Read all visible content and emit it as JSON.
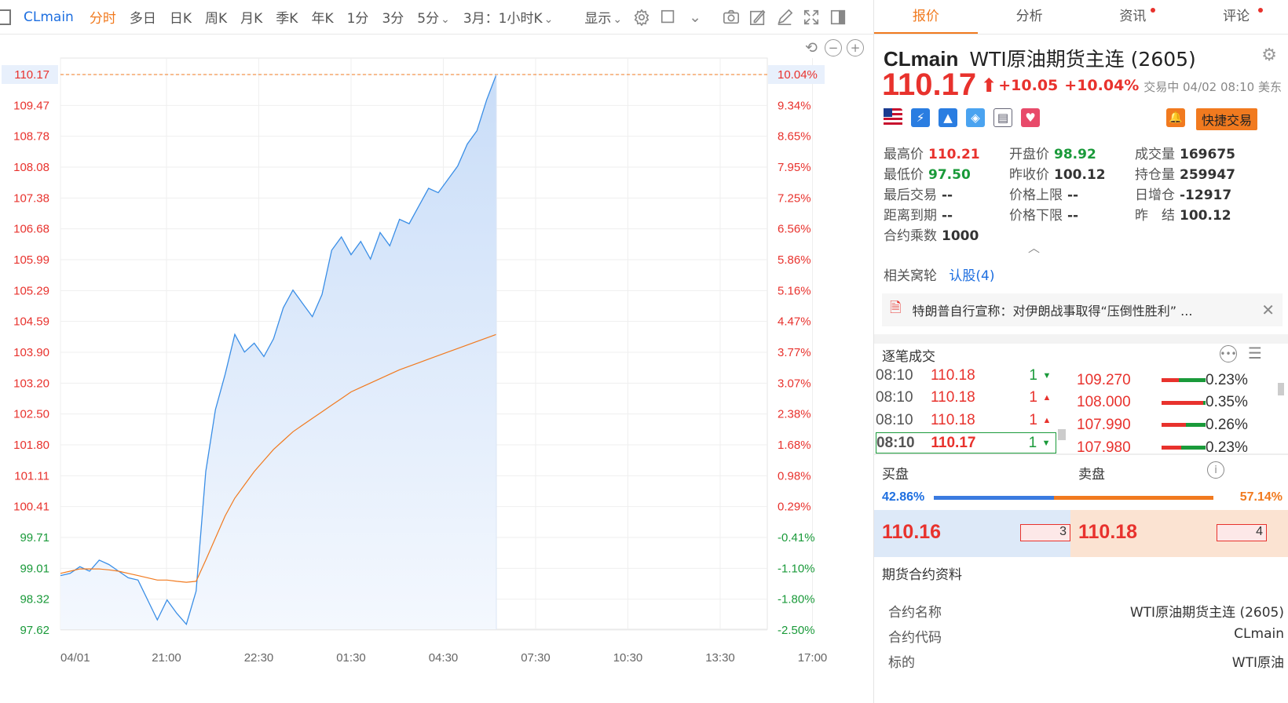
{
  "toolbar": {
    "symbol": "CLmain",
    "items": [
      "分时",
      "多日",
      "日K",
      "周K",
      "月K",
      "季K",
      "年K",
      "1分",
      "3分",
      "5分"
    ],
    "period_select": "3月：1小时K",
    "display_label": "显示",
    "icons": [
      "gear-icon",
      "square-icon",
      "camera-icon",
      "draw-icon",
      "pen-icon",
      "fullscreen-icon",
      "panel-toggle-icon"
    ]
  },
  "chart_data": {
    "type": "line",
    "left_axis": [
      "110.17",
      "109.47",
      "108.78",
      "108.08",
      "107.38",
      "106.68",
      "105.99",
      "105.29",
      "104.59",
      "103.90",
      "103.20",
      "102.50",
      "101.80",
      "101.11",
      "100.41",
      "99.71",
      "99.01",
      "98.32",
      "97.62"
    ],
    "right_axis": [
      "10.04%",
      "9.34%",
      "8.65%",
      "7.95%",
      "7.25%",
      "6.56%",
      "5.86%",
      "5.16%",
      "4.47%",
      "3.77%",
      "3.07%",
      "2.38%",
      "1.68%",
      "0.98%",
      "0.29%",
      "-0.41%",
      "-1.10%",
      "-1.80%",
      "-2.50%"
    ],
    "x_labels": [
      "04/01",
      "21:00",
      "22:30",
      "01:30",
      "04:30",
      "07:30",
      "10:30",
      "13:30",
      "17:00"
    ],
    "prev_close": 100.12,
    "ylim": [
      97.62,
      110.17
    ],
    "colors": {
      "price": "#3a8ee6",
      "average": "#f17a1f",
      "up": "#e8322d",
      "down": "#1a9a3a"
    },
    "price_series": {
      "name": "price",
      "values": [
        98.85,
        98.9,
        99.05,
        98.95,
        99.2,
        99.1,
        98.95,
        98.8,
        98.75,
        98.3,
        97.85,
        98.3,
        98.0,
        97.75,
        98.5,
        101.2,
        102.6,
        103.4,
        104.3,
        103.9,
        104.1,
        103.8,
        104.2,
        104.9,
        105.3,
        105.0,
        104.7,
        105.2,
        106.2,
        106.5,
        106.1,
        106.4,
        106.0,
        106.6,
        106.3,
        106.9,
        106.8,
        107.2,
        107.6,
        107.5,
        107.8,
        108.1,
        108.6,
        108.9,
        109.6,
        110.17
      ]
    },
    "average_series": {
      "name": "average",
      "values": [
        98.9,
        98.95,
        99.0,
        99.0,
        99.0,
        98.98,
        98.95,
        98.9,
        98.85,
        98.8,
        98.75,
        98.75,
        98.72,
        98.7,
        98.72,
        99.2,
        99.7,
        100.2,
        100.6,
        100.9,
        101.2,
        101.45,
        101.7,
        101.9,
        102.1,
        102.25,
        102.4,
        102.55,
        102.7,
        102.85,
        103.0,
        103.1,
        103.2,
        103.3,
        103.4,
        103.5,
        103.58,
        103.66,
        103.74,
        103.82,
        103.9,
        103.98,
        104.06,
        104.14,
        104.22,
        104.3
      ]
    }
  },
  "tabs": [
    {
      "label": "报价",
      "active": true,
      "dot": false
    },
    {
      "label": "分析",
      "active": false,
      "dot": false
    },
    {
      "label": "资讯",
      "active": false,
      "dot": true
    },
    {
      "label": "评论",
      "active": false,
      "dot": true
    }
  ],
  "quote": {
    "code": "CLmain",
    "name": "WTI原油期货主连 (2605)",
    "price": "110.17",
    "change": "+10.05",
    "change_pct": "+10.04%",
    "status": "交易中 04/02 08:10 美东",
    "quick_trade": "快捷交易",
    "badges": [
      "us-flag-icon",
      "lightning-icon",
      "chart-up-icon",
      "tag-icon",
      "bookmark-icon",
      "heart-icon"
    ]
  },
  "stats": [
    {
      "label": "最高价",
      "value": "110.21",
      "tone": "red"
    },
    {
      "label": "开盘价",
      "value": "98.92",
      "tone": "green"
    },
    {
      "label": "成交量",
      "value": "169675",
      "tone": ""
    },
    {
      "label": "最低价",
      "value": "97.50",
      "tone": "green"
    },
    {
      "label": "昨收价",
      "value": "100.12",
      "tone": ""
    },
    {
      "label": "持仓量",
      "value": "259947",
      "tone": ""
    },
    {
      "label": "最后交易",
      "value": "--",
      "tone": ""
    },
    {
      "label": "价格上限",
      "value": "--",
      "tone": ""
    },
    {
      "label": "日增仓",
      "value": "-12917",
      "tone": ""
    },
    {
      "label": "距离到期",
      "value": "--",
      "tone": ""
    },
    {
      "label": "价格下限",
      "value": "--",
      "tone": ""
    },
    {
      "label": "昨　结",
      "value": "100.12",
      "tone": ""
    },
    {
      "label": "合约乘数",
      "value": "1000",
      "tone": ""
    }
  ],
  "related": {
    "label": "相关窝轮",
    "link": "认股(4)"
  },
  "news": {
    "text": "特朗普自行宣称：对伊朗战事取得“压倒性胜利” ..."
  },
  "trades": {
    "title": "逐笔成交",
    "rows": [
      {
        "time": "08:10",
        "price": "110.18",
        "qty": "1",
        "dir": "down"
      },
      {
        "time": "08:10",
        "price": "110.18",
        "qty": "1",
        "dir": "up"
      },
      {
        "time": "08:10",
        "price": "110.18",
        "qty": "1",
        "dir": "up"
      },
      {
        "time": "08:10",
        "price": "110.17",
        "qty": "1",
        "dir": "down"
      }
    ],
    "distribution": [
      {
        "price": "109.270",
        "pct": "0.23%",
        "red": 0.4,
        "green": 0.6
      },
      {
        "price": "108.000",
        "pct": "0.35%",
        "red": 0.95,
        "green": 0.05
      },
      {
        "price": "107.990",
        "pct": "0.26%",
        "red": 0.55,
        "green": 0.45
      },
      {
        "price": "107.980",
        "pct": "0.23%",
        "red": 0.45,
        "green": 0.55
      }
    ]
  },
  "book": {
    "bid_label": "买盘",
    "ask_label": "卖盘",
    "bid_pct": "42.86%",
    "ask_pct": "57.14%",
    "bid_ratio": 0.4286,
    "bid_price": "110.16",
    "bid_qty": "3",
    "ask_price": "110.18",
    "ask_qty": "4"
  },
  "contract": {
    "title": "期货合约资料",
    "rows": [
      {
        "key": "合约名称",
        "value": "WTI原油期货主连 (2605)"
      },
      {
        "key": "合约代码",
        "value": "CLmain"
      },
      {
        "key": "标的",
        "value": "WTI原油"
      }
    ]
  }
}
